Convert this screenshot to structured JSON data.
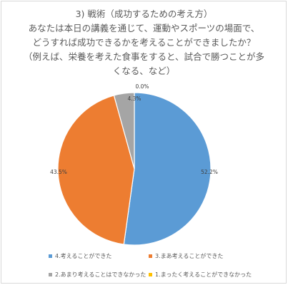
{
  "chart_data": {
    "type": "pie",
    "title_lines": [
      "3) 戦術（成功するための考え方）",
      "あなたは本日の講義を通じて、運動やスポーツの場面で、",
      "どうすれば成功できるかを考えることができましたか？",
      "（例えば、栄養を考えた食事をすると、試合で勝つことが多",
      "くなる、など）"
    ],
    "slices": [
      {
        "label": "4.考えることができた",
        "value": 52.2,
        "display": "52.2%",
        "color": "#5b9bd5"
      },
      {
        "label": "3.まあ考えることができた",
        "value": 43.5,
        "display": "43.5%",
        "color": "#ed7d31"
      },
      {
        "label": "2.あまり考えることはできなかった",
        "value": 4.3,
        "display": "4.3%",
        "color": "#a5a5a5"
      },
      {
        "label": "1.まったく考えることができなかった",
        "value": 0.0,
        "display": "0.0%",
        "color": "#ffc000"
      }
    ],
    "legend_position": "bottom"
  }
}
